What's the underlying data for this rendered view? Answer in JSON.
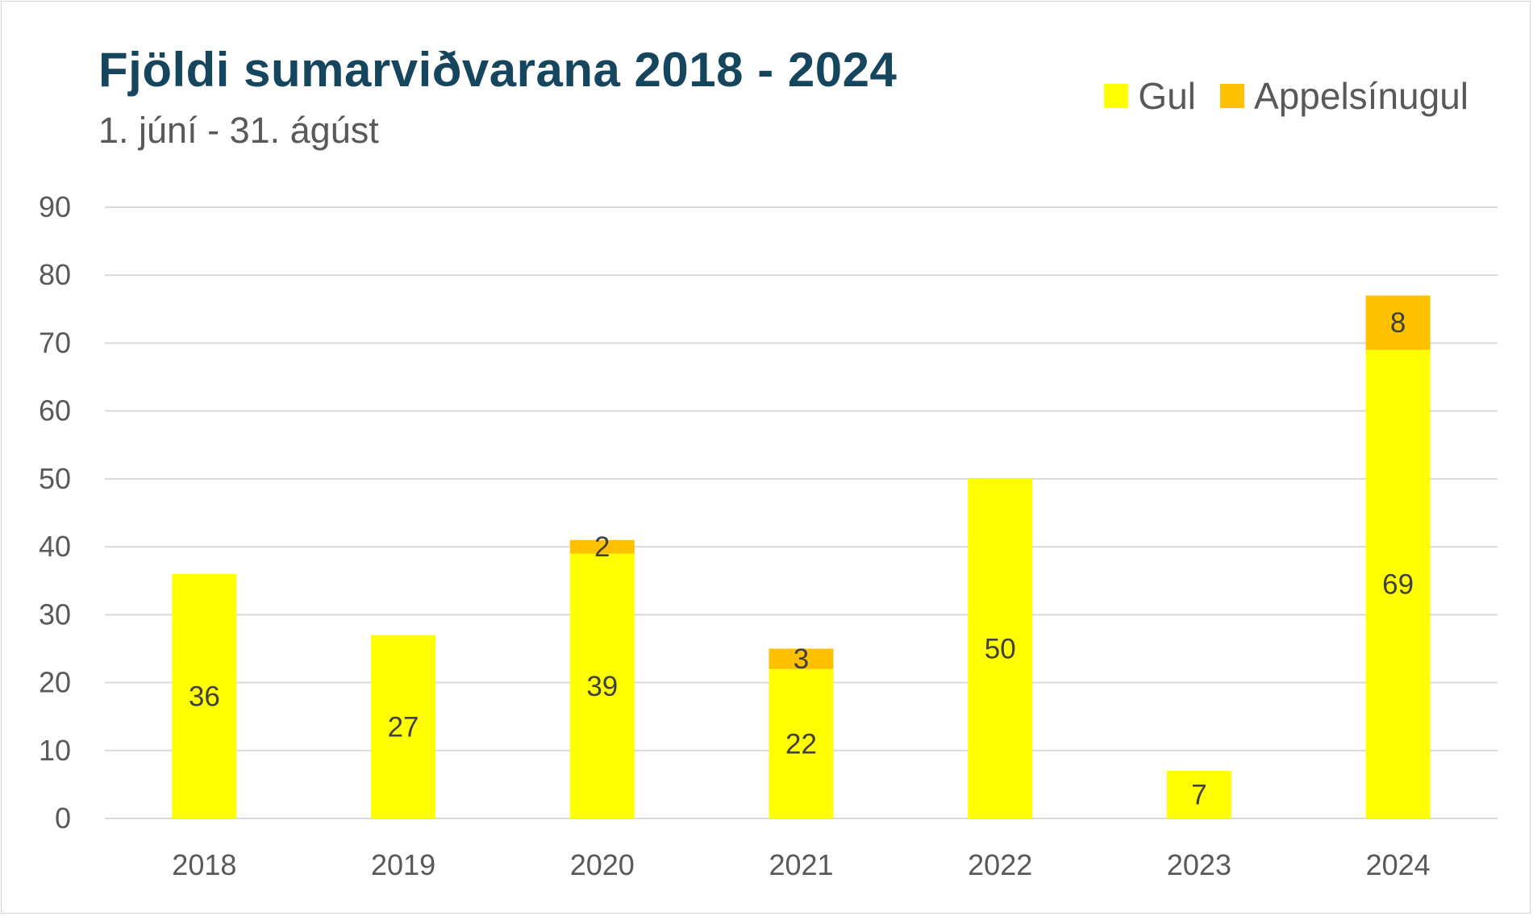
{
  "colors": {
    "gul": "#ffff00",
    "appelsinugul": "#ffc000",
    "grid": "#d9d9d9",
    "title": "#16465e"
  },
  "chart_data": {
    "type": "bar",
    "stacked": true,
    "title": "Fjöldi sumarviðvarana 2018 - 2024",
    "subtitle": "1. júní - 31. ágúst",
    "categories": [
      "2018",
      "2019",
      "2020",
      "2021",
      "2022",
      "2023",
      "2024"
    ],
    "series": [
      {
        "name": "Gul",
        "values": [
          36,
          27,
          39,
          22,
          50,
          7,
          69
        ]
      },
      {
        "name": "Appelsínugul",
        "values": [
          0,
          0,
          2,
          3,
          0,
          0,
          8
        ]
      }
    ],
    "ylim": [
      0,
      90
    ],
    "yticks": [
      0,
      10,
      20,
      30,
      40,
      50,
      60,
      70,
      80,
      90
    ],
    "grid": true,
    "legend": "top-right",
    "xlabel": "",
    "ylabel": ""
  }
}
